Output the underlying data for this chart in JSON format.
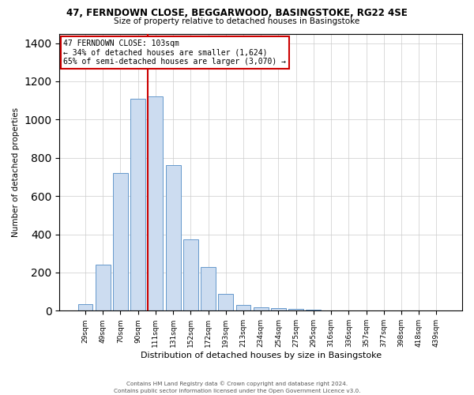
{
  "title1": "47, FERNDOWN CLOSE, BEGGARWOOD, BASINGSTOKE, RG22 4SE",
  "title2": "Size of property relative to detached houses in Basingstoke",
  "xlabel": "Distribution of detached houses by size in Basingstoke",
  "ylabel": "Number of detached properties",
  "bar_labels": [
    "29sqm",
    "49sqm",
    "70sqm",
    "90sqm",
    "111sqm",
    "131sqm",
    "152sqm",
    "172sqm",
    "193sqm",
    "213sqm",
    "234sqm",
    "254sqm",
    "275sqm",
    "295sqm",
    "316sqm",
    "336sqm",
    "357sqm",
    "377sqm",
    "398sqm",
    "418sqm",
    "439sqm"
  ],
  "bar_values": [
    35,
    240,
    720,
    1110,
    1120,
    760,
    375,
    230,
    90,
    30,
    20,
    15,
    10,
    5,
    2,
    2,
    1,
    1,
    0,
    0,
    0
  ],
  "bar_color": "#ccdcf0",
  "bar_edge_color": "#6699cc",
  "vline_index": 4,
  "vline_color": "#cc0000",
  "ylim": [
    0,
    1450
  ],
  "yticks": [
    0,
    200,
    400,
    600,
    800,
    1000,
    1200,
    1400
  ],
  "annotation_title": "47 FERNDOWN CLOSE: 103sqm",
  "annotation_line1": "← 34% of detached houses are smaller (1,624)",
  "annotation_line2": "65% of semi-detached houses are larger (3,070) →",
  "annotation_box_color": "#cc0000",
  "footer1": "Contains HM Land Registry data © Crown copyright and database right 2024.",
  "footer2": "Contains public sector information licensed under the Open Government Licence v3.0."
}
